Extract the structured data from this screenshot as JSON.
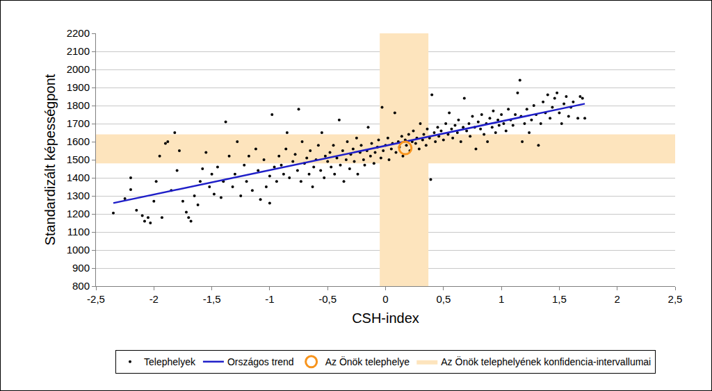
{
  "chart_data": {
    "type": "scatter",
    "x_label": "CSH-index",
    "y_label": "Standardizált képességpont",
    "xlim": [
      -2.5,
      2.5
    ],
    "xticks": [
      {
        "value": -2.5,
        "label": "-2,5"
      },
      -2,
      {
        "value": -1.5,
        "label": "-1,5"
      },
      -1,
      {
        "value": -0.5,
        "label": "-0,5"
      },
      0,
      {
        "value": 0.5,
        "label": "0,5"
      },
      1,
      {
        "value": 1.5,
        "label": "1,5"
      },
      2,
      {
        "value": 2.5,
        "label": "2,5"
      }
    ],
    "ylim": [
      800,
      2200
    ],
    "yticks": [
      800,
      900,
      1000,
      1100,
      1200,
      1300,
      1400,
      1500,
      1600,
      1700,
      1800,
      1900,
      2000,
      2100,
      2200
    ],
    "grid": "y",
    "legend": "bottom",
    "confidence_interval": {
      "name": "Az Önök telephelyének konfidencia-intervallumai",
      "color": "#fde4bd",
      "x": [
        -0.05,
        0.37
      ],
      "y": [
        1480,
        1640
      ]
    },
    "series": [
      {
        "name": "Telephelyek",
        "type": "scatter",
        "marker": "dot",
        "color": "#000000",
        "x": [
          -2.35,
          -2.25,
          -2.2,
          -2.2,
          -2.15,
          -2.1,
          -2.08,
          -2.05,
          -2.03,
          -2.0,
          -1.98,
          -1.95,
          -1.93,
          -1.9,
          -1.88,
          -1.85,
          -1.82,
          -1.8,
          -1.78,
          -1.75,
          -1.72,
          -1.7,
          -1.68,
          -1.65,
          -1.62,
          -1.6,
          -1.58,
          -1.55,
          -1.52,
          -1.5,
          -1.48,
          -1.45,
          -1.42,
          -1.4,
          -1.38,
          -1.35,
          -1.32,
          -1.3,
          -1.28,
          -1.25,
          -1.22,
          -1.2,
          -1.18,
          -1.15,
          -1.12,
          -1.1,
          -1.08,
          -1.05,
          -1.03,
          -1.0,
          -1.0,
          -0.98,
          -0.96,
          -0.94,
          -0.92,
          -0.9,
          -0.88,
          -0.86,
          -0.85,
          -0.83,
          -0.8,
          -0.78,
          -0.76,
          -0.75,
          -0.73,
          -0.72,
          -0.7,
          -0.68,
          -0.66,
          -0.65,
          -0.63,
          -0.62,
          -0.6,
          -0.58,
          -0.56,
          -0.55,
          -0.53,
          -0.52,
          -0.5,
          -0.48,
          -0.47,
          -0.45,
          -0.44,
          -0.42,
          -0.4,
          -0.39,
          -0.37,
          -0.36,
          -0.34,
          -0.33,
          -0.31,
          -0.3,
          -0.28,
          -0.27,
          -0.25,
          -0.24,
          -0.22,
          -0.21,
          -0.19,
          -0.18,
          -0.16,
          -0.15,
          -0.13,
          -0.12,
          -0.1,
          -0.09,
          -0.07,
          -0.06,
          -0.04,
          -0.03,
          -0.02,
          0,
          0.02,
          0.03,
          0.05,
          0.06,
          0.08,
          0.09,
          0.11,
          0.12,
          0.14,
          0.15,
          0.17,
          0.18,
          0.2,
          0.21,
          0.23,
          0.24,
          0.26,
          0.27,
          0.29,
          0.3,
          0.32,
          0.33,
          0.35,
          0.36,
          0.38,
          0.39,
          0.4,
          0.42,
          0.43,
          0.45,
          0.46,
          0.48,
          0.5,
          0.52,
          0.54,
          0.55,
          0.57,
          0.58,
          0.6,
          0.62,
          0.63,
          0.65,
          0.67,
          0.68,
          0.7,
          0.72,
          0.73,
          0.75,
          0.77,
          0.78,
          0.8,
          0.82,
          0.83,
          0.85,
          0.87,
          0.88,
          0.9,
          0.92,
          0.93,
          0.95,
          0.97,
          0.98,
          1.0,
          1.02,
          1.04,
          1.06,
          1.08,
          1.1,
          1.12,
          1.14,
          1.16,
          1.17,
          1.18,
          1.2,
          1.22,
          1.24,
          1.26,
          1.28,
          1.3,
          1.32,
          1.34,
          1.36,
          1.38,
          1.4,
          1.42,
          1.44,
          1.46,
          1.48,
          1.5,
          1.52,
          1.54,
          1.56,
          1.58,
          1.6,
          1.62,
          1.66,
          1.68,
          1.7,
          1.72
        ],
        "values": [
          1205,
          1285,
          1400,
          1335,
          1220,
          1190,
          1160,
          1180,
          1150,
          1270,
          1380,
          1520,
          1180,
          1590,
          1600,
          1330,
          1650,
          1440,
          1550,
          1270,
          1210,
          1180,
          1160,
          1300,
          1250,
          1380,
          1450,
          1540,
          1350,
          1420,
          1310,
          1460,
          1290,
          1380,
          1710,
          1520,
          1350,
          1420,
          1600,
          1300,
          1470,
          1380,
          1520,
          1330,
          1560,
          1440,
          1280,
          1500,
          1350,
          1260,
          1410,
          1750,
          1460,
          1380,
          1520,
          1470,
          1420,
          1560,
          1650,
          1400,
          1490,
          1530,
          1440,
          1780,
          1380,
          1600,
          1480,
          1510,
          1420,
          1550,
          1350,
          1460,
          1500,
          1580,
          1440,
          1650,
          1400,
          1520,
          1490,
          1540,
          1460,
          1580,
          1420,
          1510,
          1720,
          1470,
          1550,
          1380,
          1500,
          1600,
          1450,
          1530,
          1560,
          1490,
          1620,
          1420,
          1540,
          1580,
          1500,
          1470,
          1550,
          1680,
          1520,
          1590,
          1480,
          1540,
          1570,
          1610,
          1510,
          1790,
          1550,
          1580,
          1620,
          1500,
          1560,
          1590,
          1760,
          1540,
          1600,
          1570,
          1630,
          1520,
          1610,
          1580,
          1640,
          1550,
          1600,
          1660,
          1590,
          1620,
          1560,
          1700,
          1610,
          1640,
          1580,
          1670,
          1620,
          1390,
          1860,
          1650,
          1600,
          1680,
          1630,
          1660,
          1610,
          1700,
          1640,
          1760,
          1670,
          1620,
          1690,
          1650,
          1720,
          1600,
          1680,
          1840,
          1660,
          1700,
          1630,
          1740,
          1680,
          1560,
          1710,
          1670,
          1750,
          1640,
          1700,
          1600,
          1730,
          1680,
          1770,
          1650,
          1720,
          1690,
          1750,
          1700,
          1660,
          1780,
          1720,
          1690,
          1750,
          1870,
          1940,
          1740,
          1600,
          1700,
          1780,
          1650,
          1720,
          1800,
          1750,
          1580,
          1700,
          1820,
          1760,
          1860,
          1730,
          1790,
          1840,
          1870,
          1760,
          1700,
          1810,
          1850,
          1740,
          1790,
          1820,
          1730,
          1850,
          1840,
          1730
        ]
      },
      {
        "name": "Országos trend",
        "type": "line",
        "line_style": "solid",
        "color": "#1f1fc8",
        "x": [
          -2.35,
          1.72
        ],
        "values": [
          1260,
          1810
        ]
      },
      {
        "name": "Az Önök telephelye",
        "type": "scatter",
        "marker": "circle-open",
        "color": "#f7941d",
        "x": [
          0.17
        ],
        "values": [
          1565
        ]
      }
    ]
  }
}
